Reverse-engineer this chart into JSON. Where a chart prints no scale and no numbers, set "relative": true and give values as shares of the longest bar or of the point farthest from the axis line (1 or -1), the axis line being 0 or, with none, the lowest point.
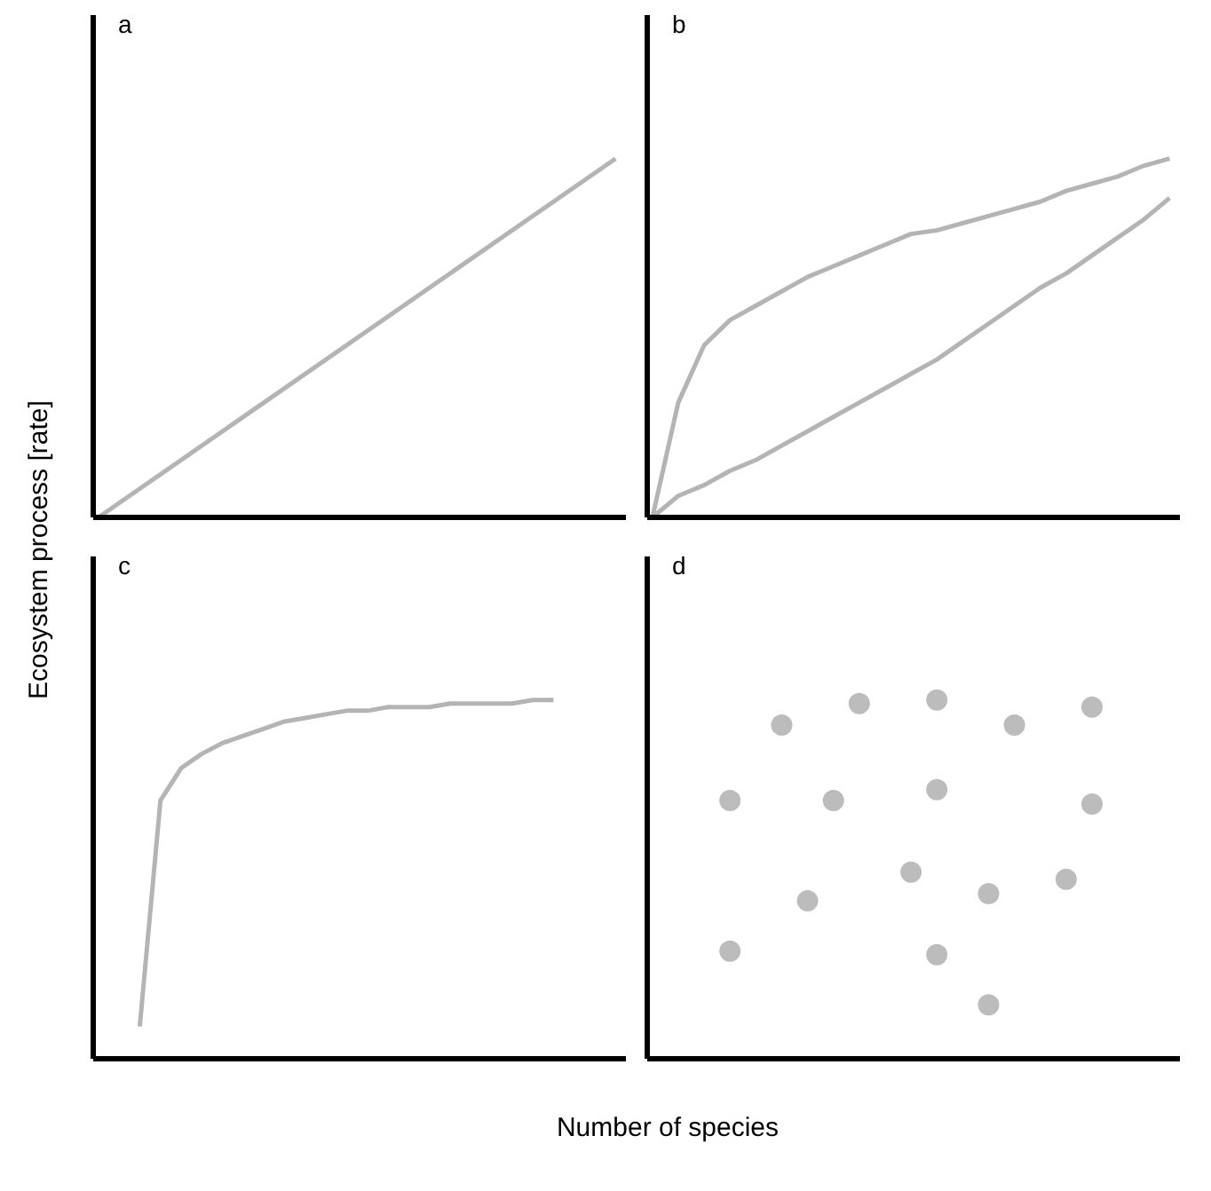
{
  "chart_data": [
    {
      "type": "line",
      "title": "a",
      "ylabel": "Ecosystem process [rate]",
      "relative": true,
      "categories": [
        null,
        null
      ],
      "series": [
        {
          "color": "#b4b4b4",
          "values": [
            0,
            1
          ]
        }
      ]
    },
    {
      "type": "line",
      "title": "b",
      "relative": true,
      "categories": [
        null,
        null,
        null,
        null,
        null,
        null,
        null,
        null,
        null,
        null,
        null,
        null,
        null,
        null,
        null,
        null,
        null,
        null,
        null,
        null,
        null
      ],
      "series": [
        {
          "color": "#b4b4b4",
          "values": [
            0,
            0.32,
            0.48,
            0.55,
            0.59,
            0.63,
            0.67,
            0.7,
            0.73,
            0.76,
            0.79,
            0.8,
            0.82,
            0.84,
            0.86,
            0.88,
            0.91,
            0.93,
            0.95,
            0.98,
            1
          ]
        },
        {
          "color": "#b4b4b4",
          "values": [
            0,
            0.06,
            0.09,
            0.13,
            0.16,
            0.2,
            0.24,
            0.28,
            0.32,
            0.36,
            0.4,
            0.44,
            0.49,
            0.54,
            0.59,
            0.64,
            0.68,
            0.73,
            0.78,
            0.83,
            0.89
          ]
        }
      ]
    },
    {
      "type": "line",
      "title": "c",
      "xlabel": "Number of species",
      "relative": true,
      "categories": [
        null,
        null,
        null,
        null,
        null,
        null,
        null,
        null,
        null,
        null,
        null,
        null,
        null,
        null,
        null,
        null,
        null,
        null,
        null,
        null,
        null,
        null,
        null,
        null,
        null,
        null
      ],
      "series": [
        {
          "color": "#b4b4b4",
          "values": [
            null,
            null,
            0.09,
            0.72,
            0.81,
            0.85,
            0.88,
            0.9,
            0.92,
            0.94,
            0.95,
            0.96,
            0.97,
            0.97,
            0.98,
            0.98,
            0.98,
            0.99,
            0.99,
            0.99,
            0.99,
            1,
            1,
            null,
            null,
            null
          ]
        }
      ]
    },
    {
      "type": "scatter",
      "title": "d",
      "relative": true,
      "marker": "circle",
      "categories": [
        null,
        null,
        null,
        null,
        null,
        null,
        null,
        null,
        null,
        null,
        null,
        null,
        null,
        null,
        null,
        null,
        null,
        null,
        null,
        null,
        null
      ],
      "series": [
        {
          "color": "#bcbcbc",
          "values": [
            null,
            null,
            null,
            0.72,
            null,
            0.93,
            0.44,
            0.72,
            0.99,
            null,
            0.52,
            1,
            null,
            0.46,
            0.93,
            null,
            0.5,
            0.98,
            null,
            null,
            null
          ]
        },
        {
          "color": "#bcbcbc",
          "values": [
            null,
            null,
            null,
            0.3,
            null,
            null,
            null,
            null,
            null,
            null,
            null,
            0.75,
            null,
            0.15,
            null,
            null,
            null,
            0.71,
            null,
            null,
            null
          ]
        },
        {
          "color": "#bcbcbc",
          "values": [
            null,
            null,
            null,
            null,
            null,
            null,
            null,
            null,
            null,
            null,
            null,
            0.29,
            null,
            null,
            null,
            null,
            null,
            null,
            null,
            null,
            null
          ]
        }
      ]
    }
  ]
}
